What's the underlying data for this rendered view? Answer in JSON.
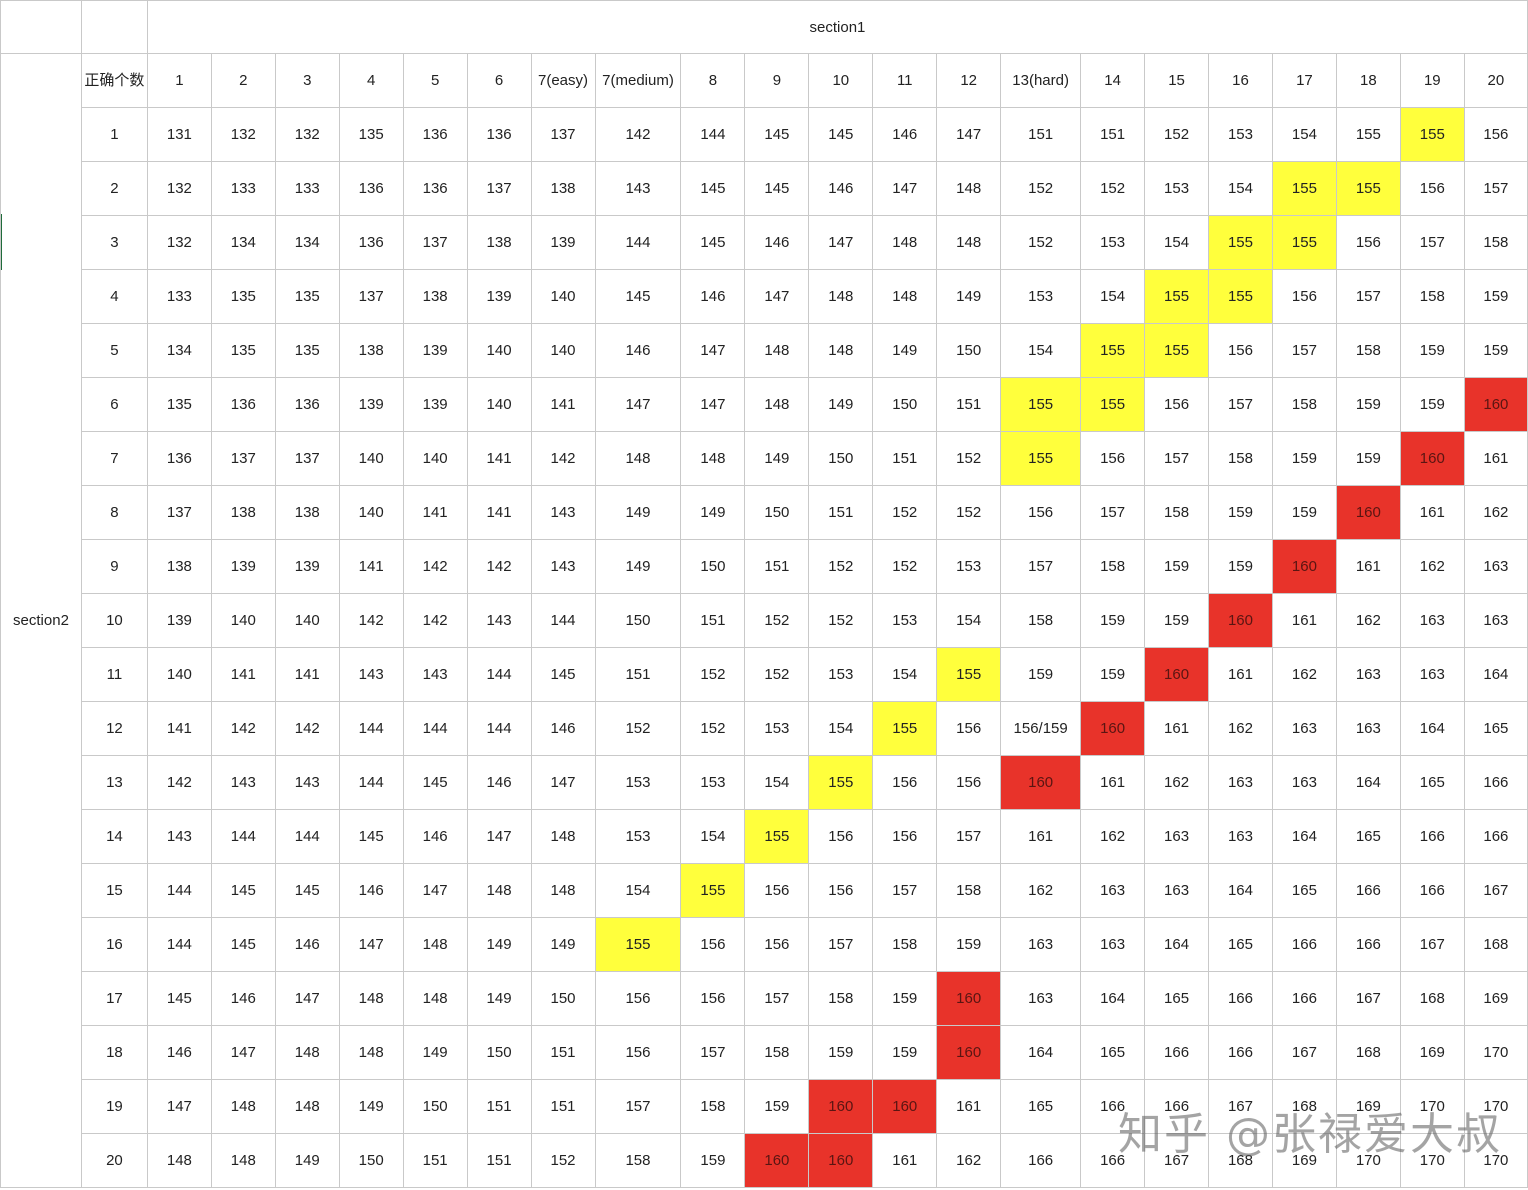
{
  "header": {
    "section1": "section1",
    "section2": "section2",
    "corner": "正确个数"
  },
  "columns": [
    "1",
    "2",
    "3",
    "4",
    "5",
    "6",
    "7(easy)",
    "7(medium)",
    "8",
    "9",
    "10",
    "11",
    "12",
    "13(hard)",
    "14",
    "15",
    "16",
    "17",
    "18",
    "19",
    "20"
  ],
  "rows": [
    {
      "label": "1",
      "cells": [
        "131",
        "132",
        "132",
        "135",
        "136",
        "136",
        "137",
        "142",
        "144",
        "145",
        "145",
        "146",
        "147",
        "151",
        "151",
        "152",
        "153",
        "154",
        "155",
        "155",
        "156"
      ],
      "hl": [
        "",
        "",
        "",
        "",
        "",
        "",
        "",
        "",
        "",
        "",
        "",
        "",
        "",
        "",
        "",
        "",
        "",
        "",
        "",
        "y",
        ""
      ]
    },
    {
      "label": "2",
      "cells": [
        "132",
        "133",
        "133",
        "136",
        "136",
        "137",
        "138",
        "143",
        "145",
        "145",
        "146",
        "147",
        "148",
        "152",
        "152",
        "153",
        "154",
        "155",
        "155",
        "156",
        "157"
      ],
      "hl": [
        "",
        "",
        "",
        "",
        "",
        "",
        "",
        "",
        "",
        "",
        "",
        "",
        "",
        "",
        "",
        "",
        "",
        "y",
        "y",
        "",
        ""
      ]
    },
    {
      "label": "3",
      "cells": [
        "132",
        "134",
        "134",
        "136",
        "137",
        "138",
        "139",
        "144",
        "145",
        "146",
        "147",
        "148",
        "148",
        "152",
        "153",
        "154",
        "155",
        "155",
        "156",
        "157",
        "158"
      ],
      "hl": [
        "",
        "",
        "",
        "",
        "",
        "",
        "",
        "",
        "",
        "",
        "",
        "",
        "",
        "",
        "",
        "",
        "y",
        "y",
        "",
        "",
        ""
      ]
    },
    {
      "label": "4",
      "cells": [
        "133",
        "135",
        "135",
        "137",
        "138",
        "139",
        "140",
        "145",
        "146",
        "147",
        "148",
        "148",
        "149",
        "153",
        "154",
        "155",
        "155",
        "156",
        "157",
        "158",
        "159"
      ],
      "hl": [
        "",
        "",
        "",
        "",
        "",
        "",
        "",
        "",
        "",
        "",
        "",
        "",
        "",
        "",
        "",
        "y",
        "y",
        "",
        "",
        "",
        ""
      ]
    },
    {
      "label": "5",
      "cells": [
        "134",
        "135",
        "135",
        "138",
        "139",
        "140",
        "140",
        "146",
        "147",
        "148",
        "148",
        "149",
        "150",
        "154",
        "155",
        "155",
        "156",
        "157",
        "158",
        "159",
        "159"
      ],
      "hl": [
        "",
        "",
        "",
        "",
        "",
        "",
        "",
        "",
        "",
        "",
        "",
        "",
        "",
        "",
        "y",
        "y",
        "",
        "",
        "",
        "",
        ""
      ]
    },
    {
      "label": "6",
      "cells": [
        "135",
        "136",
        "136",
        "139",
        "139",
        "140",
        "141",
        "147",
        "147",
        "148",
        "149",
        "150",
        "151",
        "155",
        "155",
        "156",
        "157",
        "158",
        "159",
        "159",
        "160"
      ],
      "hl": [
        "",
        "",
        "",
        "",
        "",
        "",
        "",
        "",
        "",
        "",
        "",
        "",
        "",
        "y",
        "y",
        "",
        "",
        "",
        "",
        "",
        "r"
      ]
    },
    {
      "label": "7",
      "cells": [
        "136",
        "137",
        "137",
        "140",
        "140",
        "141",
        "142",
        "148",
        "148",
        "149",
        "150",
        "151",
        "152",
        "155",
        "156",
        "157",
        "158",
        "159",
        "159",
        "160",
        "161"
      ],
      "hl": [
        "",
        "",
        "",
        "",
        "",
        "",
        "",
        "",
        "",
        "",
        "",
        "",
        "",
        "y",
        "",
        "",
        "",
        "",
        "",
        "r",
        ""
      ]
    },
    {
      "label": "8",
      "cells": [
        "137",
        "138",
        "138",
        "140",
        "141",
        "141",
        "143",
        "149",
        "149",
        "150",
        "151",
        "152",
        "152",
        "156",
        "157",
        "158",
        "159",
        "159",
        "160",
        "161",
        "162"
      ],
      "hl": [
        "",
        "",
        "",
        "",
        "",
        "",
        "",
        "",
        "",
        "",
        "",
        "",
        "",
        "",
        "",
        "",
        "",
        "",
        "r",
        "",
        ""
      ]
    },
    {
      "label": "9",
      "cells": [
        "138",
        "139",
        "139",
        "141",
        "142",
        "142",
        "143",
        "149",
        "150",
        "151",
        "152",
        "152",
        "153",
        "157",
        "158",
        "159",
        "159",
        "160",
        "161",
        "162",
        "163"
      ],
      "hl": [
        "",
        "",
        "",
        "",
        "",
        "",
        "",
        "",
        "",
        "",
        "",
        "",
        "",
        "",
        "",
        "",
        "",
        "r",
        "",
        "",
        ""
      ]
    },
    {
      "label": "10",
      "cells": [
        "139",
        "140",
        "140",
        "142",
        "142",
        "143",
        "144",
        "150",
        "151",
        "152",
        "152",
        "153",
        "154",
        "158",
        "159",
        "159",
        "160",
        "161",
        "162",
        "163",
        "163"
      ],
      "hl": [
        "",
        "",
        "",
        "",
        "",
        "",
        "",
        "",
        "",
        "",
        "",
        "",
        "",
        "",
        "",
        "",
        "r",
        "",
        "",
        "",
        ""
      ]
    },
    {
      "label": "11",
      "cells": [
        "140",
        "141",
        "141",
        "143",
        "143",
        "144",
        "145",
        "151",
        "152",
        "152",
        "153",
        "154",
        "155",
        "159",
        "159",
        "160",
        "161",
        "162",
        "163",
        "163",
        "164"
      ],
      "hl": [
        "",
        "",
        "",
        "",
        "",
        "",
        "",
        "",
        "",
        "",
        "",
        "",
        "y",
        "",
        "",
        "r",
        "",
        "",
        "",
        "",
        ""
      ]
    },
    {
      "label": "12",
      "cells": [
        "141",
        "142",
        "142",
        "144",
        "144",
        "144",
        "146",
        "152",
        "152",
        "153",
        "154",
        "155",
        "156",
        "156/159",
        "160",
        "161",
        "162",
        "163",
        "163",
        "164",
        "165"
      ],
      "hl": [
        "",
        "",
        "",
        "",
        "",
        "",
        "",
        "",
        "",
        "",
        "",
        "y",
        "",
        "",
        "r",
        "",
        "",
        "",
        "",
        "",
        ""
      ]
    },
    {
      "label": "13",
      "cells": [
        "142",
        "143",
        "143",
        "144",
        "145",
        "146",
        "147",
        "153",
        "153",
        "154",
        "155",
        "156",
        "156",
        "160",
        "161",
        "162",
        "163",
        "163",
        "164",
        "165",
        "166"
      ],
      "hl": [
        "",
        "",
        "",
        "",
        "",
        "",
        "",
        "",
        "",
        "",
        "y",
        "",
        "",
        "r",
        "",
        "",
        "",
        "",
        "",
        "",
        ""
      ]
    },
    {
      "label": "14",
      "cells": [
        "143",
        "144",
        "144",
        "145",
        "146",
        "147",
        "148",
        "153",
        "154",
        "155",
        "156",
        "156",
        "157",
        "161",
        "162",
        "163",
        "163",
        "164",
        "165",
        "166",
        "166"
      ],
      "hl": [
        "",
        "",
        "",
        "",
        "",
        "",
        "",
        "",
        "",
        "y",
        "",
        "",
        "",
        "",
        "",
        "",
        "",
        "",
        "",
        "",
        ""
      ]
    },
    {
      "label": "15",
      "cells": [
        "144",
        "145",
        "145",
        "146",
        "147",
        "148",
        "148",
        "154",
        "155",
        "156",
        "156",
        "157",
        "158",
        "162",
        "163",
        "163",
        "164",
        "165",
        "166",
        "166",
        "167"
      ],
      "hl": [
        "",
        "",
        "",
        "",
        "",
        "",
        "",
        "",
        "y",
        "",
        "",
        "",
        "",
        "",
        "",
        "",
        "",
        "",
        "",
        "",
        ""
      ]
    },
    {
      "label": "16",
      "cells": [
        "144",
        "145",
        "146",
        "147",
        "148",
        "149",
        "149",
        "155",
        "156",
        "156",
        "157",
        "158",
        "159",
        "163",
        "163",
        "164",
        "165",
        "166",
        "166",
        "167",
        "168"
      ],
      "hl": [
        "",
        "",
        "",
        "",
        "",
        "",
        "",
        "y",
        "",
        "",
        "",
        "",
        "",
        "",
        "",
        "",
        "",
        "",
        "",
        "",
        ""
      ]
    },
    {
      "label": "17",
      "cells": [
        "145",
        "146",
        "147",
        "148",
        "148",
        "149",
        "150",
        "156",
        "156",
        "157",
        "158",
        "159",
        "160",
        "163",
        "164",
        "165",
        "166",
        "166",
        "167",
        "168",
        "169"
      ],
      "hl": [
        "",
        "",
        "",
        "",
        "",
        "",
        "",
        "",
        "",
        "",
        "",
        "",
        "r",
        "",
        "",
        "",
        "",
        "",
        "",
        "",
        ""
      ]
    },
    {
      "label": "18",
      "cells": [
        "146",
        "147",
        "148",
        "148",
        "149",
        "150",
        "151",
        "156",
        "157",
        "158",
        "159",
        "159",
        "160",
        "164",
        "165",
        "166",
        "166",
        "167",
        "168",
        "169",
        "170"
      ],
      "hl": [
        "",
        "",
        "",
        "",
        "",
        "",
        "",
        "",
        "",
        "",
        "",
        "",
        "r",
        "",
        "",
        "",
        "",
        "",
        "",
        "",
        ""
      ]
    },
    {
      "label": "19",
      "cells": [
        "147",
        "148",
        "148",
        "149",
        "150",
        "151",
        "151",
        "157",
        "158",
        "159",
        "160",
        "160",
        "161",
        "165",
        "166",
        "166",
        "167",
        "168",
        "169",
        "170",
        "170"
      ],
      "hl": [
        "",
        "",
        "",
        "",
        "",
        "",
        "",
        "",
        "",
        "",
        "r",
        "r",
        "",
        "",
        "",
        "",
        "",
        "",
        "",
        "",
        ""
      ]
    },
    {
      "label": "20",
      "cells": [
        "148",
        "148",
        "149",
        "150",
        "151",
        "151",
        "152",
        "158",
        "159",
        "160",
        "160",
        "161",
        "162",
        "166",
        "166",
        "167",
        "168",
        "169",
        "170",
        "170",
        "170"
      ],
      "hl": [
        "",
        "",
        "",
        "",
        "",
        "",
        "",
        "",
        "",
        "r",
        "r",
        "",
        "",
        "",
        "",
        "",
        "",
        "",
        "",
        "",
        ""
      ]
    }
  ],
  "colors": {
    "yellow": "#ffff3c",
    "red": "#e8332a"
  },
  "watermark": "知乎 @张禄爱大叔"
}
